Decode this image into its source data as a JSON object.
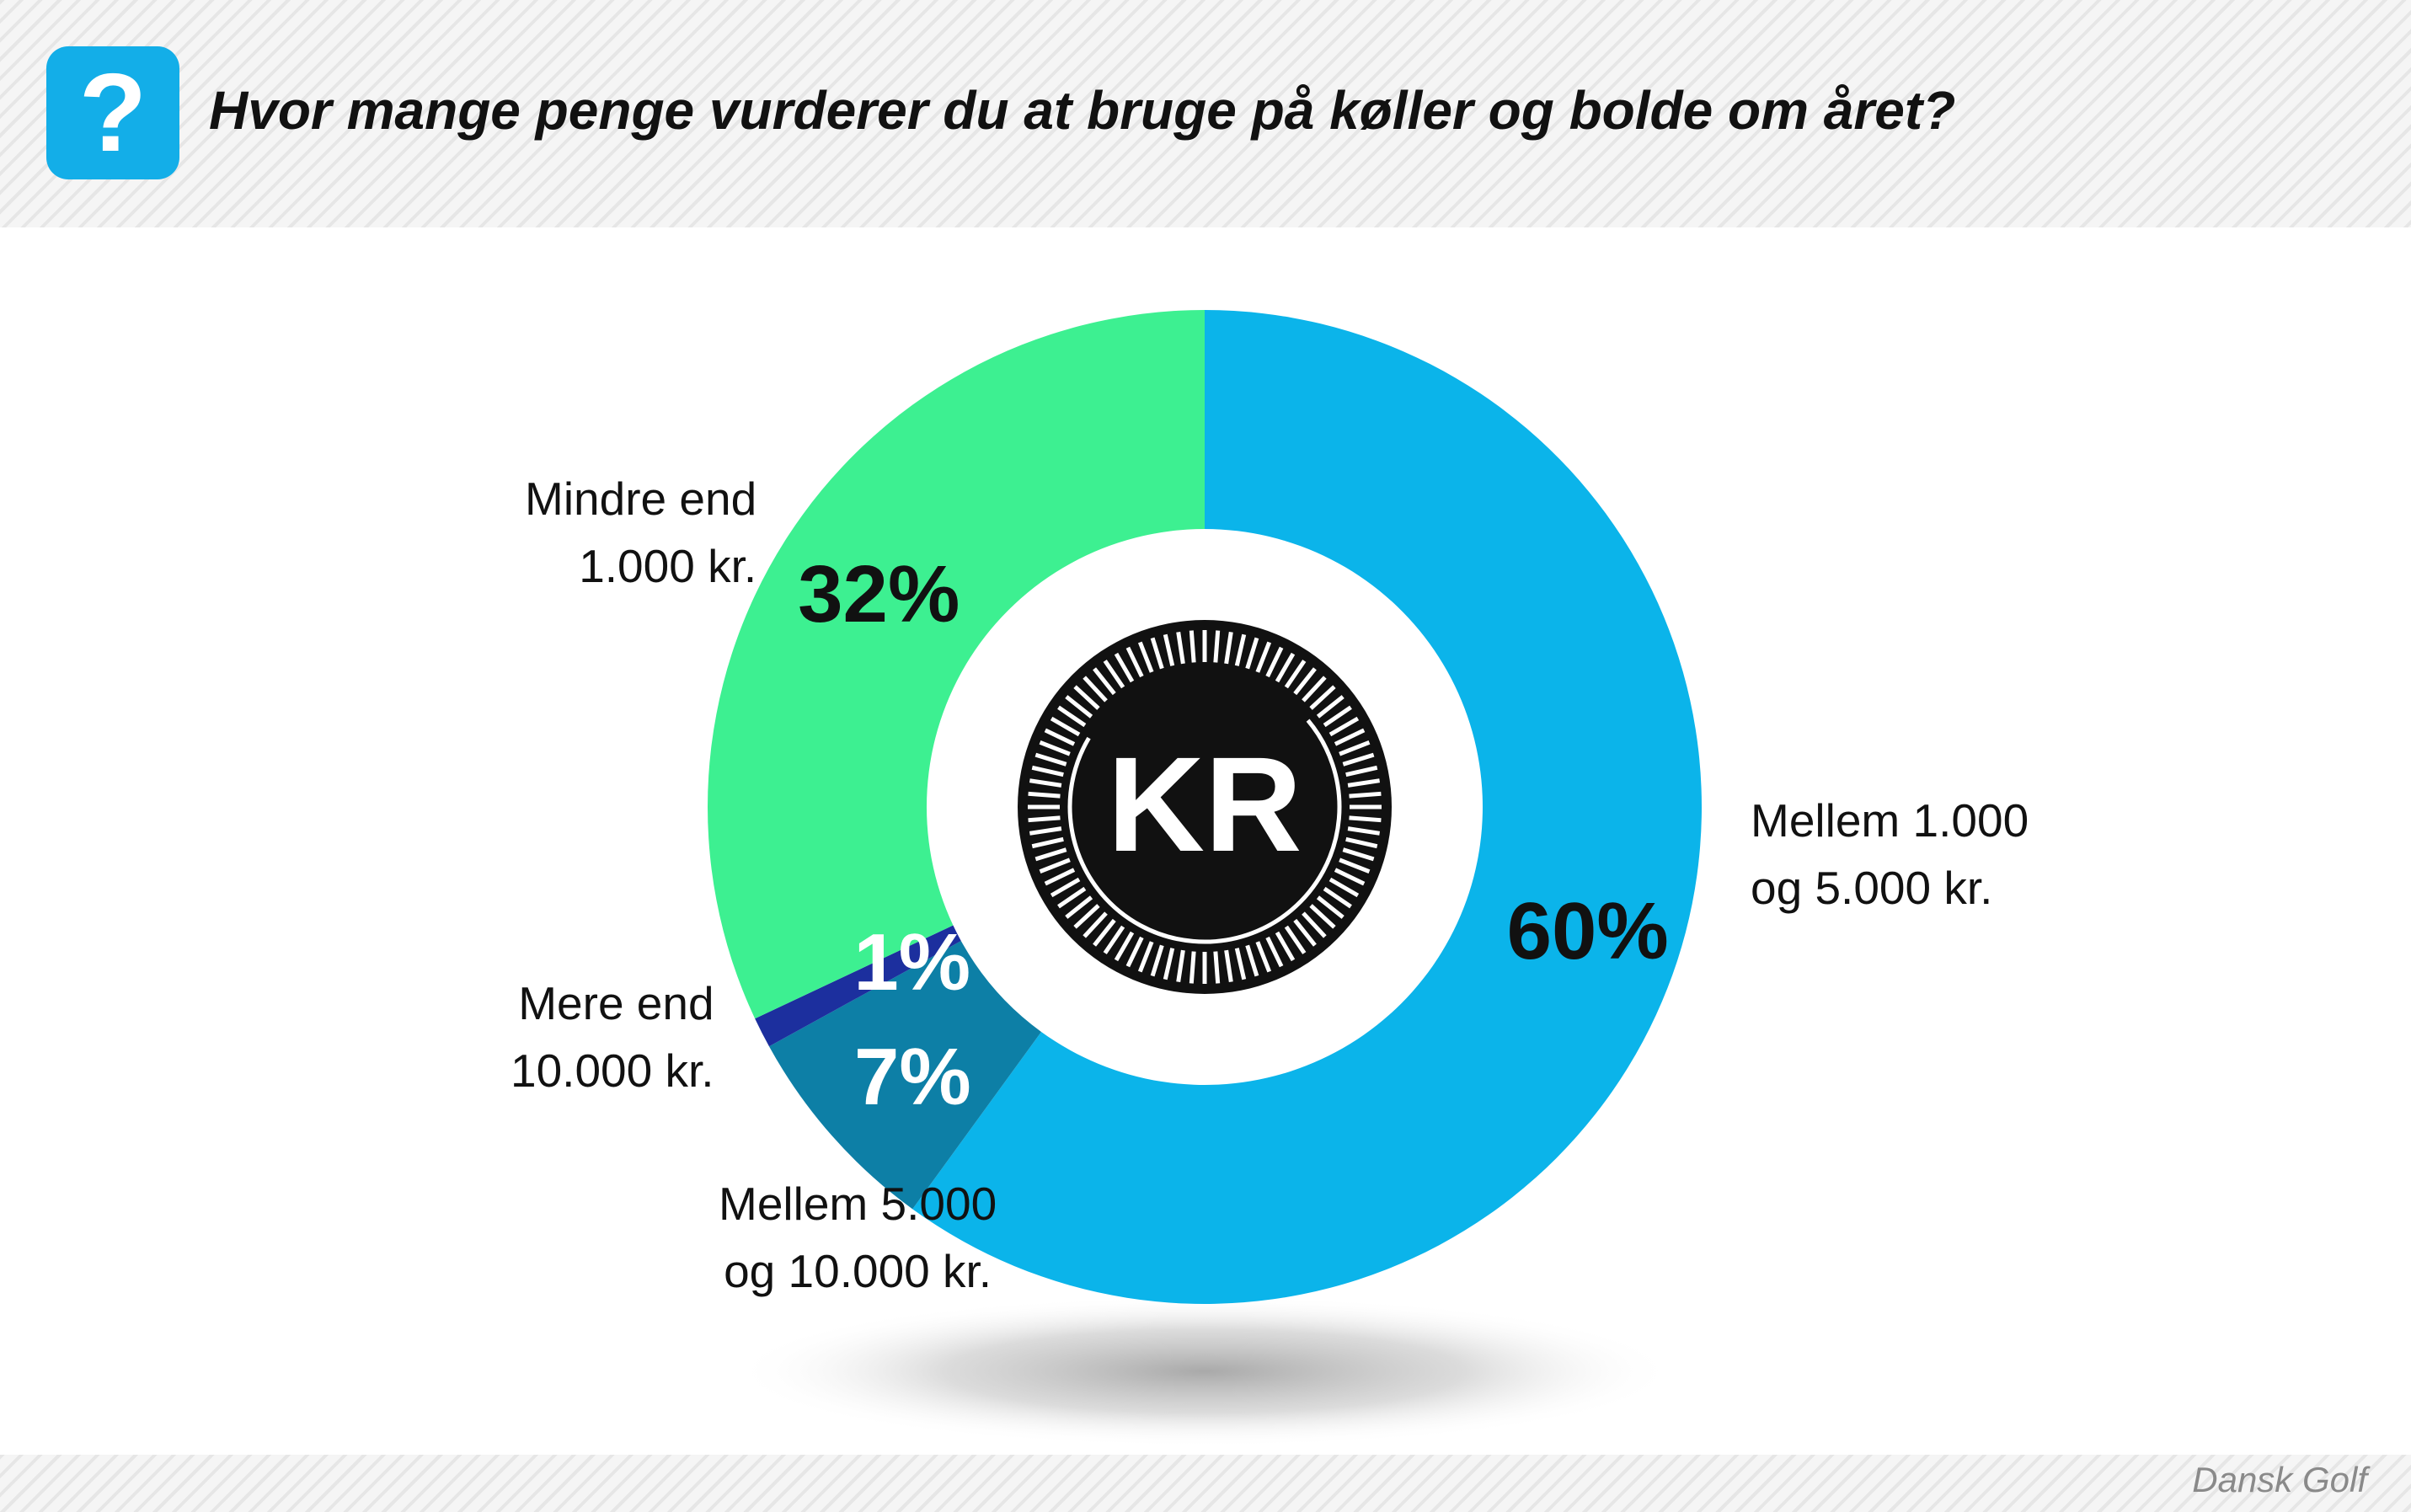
{
  "header": {
    "badge_symbol": "?",
    "badge_color": "#13aee8",
    "question": "Hvor mange penge vurderer du at bruge på køller og bolde om året?"
  },
  "footer": {
    "source": "Dansk Golf"
  },
  "center_icon": {
    "text": "KR",
    "name": "coin-icon"
  },
  "chart_data": {
    "type": "pie",
    "style": "donut",
    "title": "Hvor mange penge vurderer du at bruge på køller og bolde om året?",
    "unit": "%",
    "slices": [
      {
        "label": "Mellem 1.000 og 5.000 kr.",
        "value": 60,
        "value_label": "60%",
        "color": "#0bb4ea",
        "text_color": "#111111"
      },
      {
        "label": "Mellem 5.000 og 10.000 kr.",
        "value": 7,
        "value_label": "7%",
        "color": "#0d7fa6",
        "text_color": "#ffffff"
      },
      {
        "label": "Mere end 10.000 kr.",
        "value": 1,
        "value_label": "1%",
        "color": "#1c2f9e",
        "text_color": "#ffffff"
      },
      {
        "label": "Mindre end 1.000 kr.",
        "value": 32,
        "value_label": "32%",
        "color": "#3df091",
        "text_color": "#111111"
      }
    ],
    "label_lines": {
      "Mellem 1.000 og 5.000 kr.": "Mellem 1.000\nog 5.000 kr.",
      "Mellem 5.000 og 10.000 kr.": "Mellem 5.000\nog 10.000 kr.",
      "Mere end 10.000 kr.": "Mere end\n10.000 kr.",
      "Mindre end 1.000 kr.": "Mindre end\n1.000 kr."
    }
  }
}
